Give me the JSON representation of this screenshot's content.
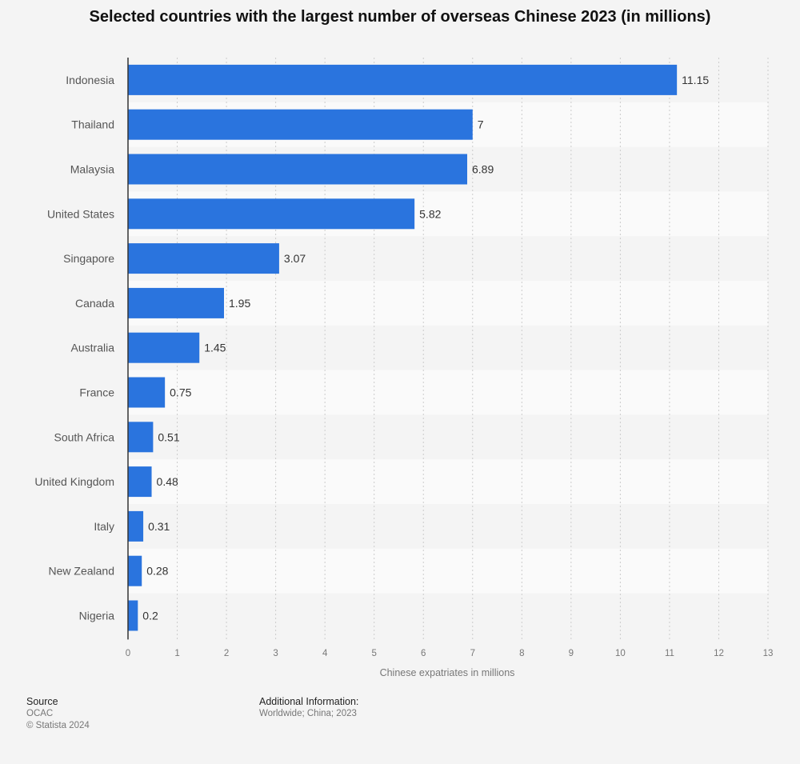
{
  "colors": {
    "bar": "#2a74de",
    "background": "#f4f4f4",
    "band": "#fafafa",
    "grid": "#cccccc",
    "axis": "#333333",
    "label": "#555555",
    "value": "#333333",
    "tick": "#777777"
  },
  "chart_data": {
    "type": "bar",
    "orientation": "horizontal",
    "title": "Selected countries with the largest number of overseas Chinese 2023 (in millions)",
    "xlabel": "Chinese expatriates in millions",
    "ylabel": "",
    "xlim": [
      0,
      13
    ],
    "xticks": [
      "0",
      "1",
      "2",
      "3",
      "4",
      "5",
      "6",
      "7",
      "8",
      "9",
      "10",
      "11",
      "12",
      "13"
    ],
    "grid": true,
    "categories": [
      "Indonesia",
      "Thailand",
      "Malaysia",
      "United States",
      "Singapore",
      "Canada",
      "Australia",
      "France",
      "South Africa",
      "United Kingdom",
      "Italy",
      "New Zealand",
      "Nigeria"
    ],
    "values": [
      11.15,
      7,
      6.89,
      5.82,
      3.07,
      1.95,
      1.45,
      0.75,
      0.51,
      0.48,
      0.31,
      0.28,
      0.2
    ],
    "value_labels": [
      "11.15",
      "7",
      "6.89",
      "5.82",
      "3.07",
      "1.95",
      "1.45",
      "0.75",
      "0.51",
      "0.48",
      "0.31",
      "0.28",
      "0.2"
    ]
  },
  "footer": {
    "source_heading": "Source",
    "source_name": "OCAC",
    "copyright": "© Statista 2024",
    "additional_heading": "Additional Information:",
    "additional_text": "Worldwide; China; 2023"
  }
}
